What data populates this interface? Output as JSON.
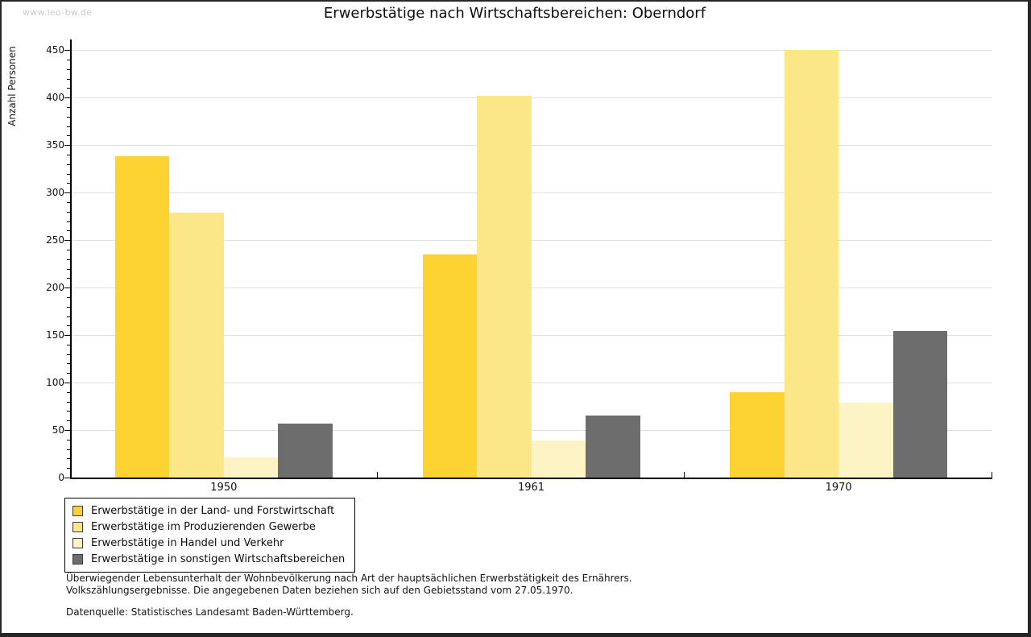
{
  "watermark": "www.leo-bw.de",
  "chart_data": {
    "type": "bar",
    "title": "Erwerbstätige nach Wirtschaftsbereichen: Oberndorf",
    "ylabel": "Anzahl Personen",
    "xlabel": "",
    "categories": [
      "1950",
      "1961",
      "1970"
    ],
    "series": [
      {
        "name": "Erwerbstätige in der Land- und Forstwirtschaft",
        "color": "#FCD330",
        "values": [
          338,
          235,
          90
        ]
      },
      {
        "name": "Erwerbstätige im Produzierenden Gewerbe",
        "color": "#FBE787",
        "values": [
          279,
          402,
          450
        ]
      },
      {
        "name": "Erwerbstätige in Handel und Verkehr",
        "color": "#FCF4C5",
        "values": [
          21,
          39,
          79
        ]
      },
      {
        "name": "Erwerbstätige in sonstigen Wirtschaftsbereichen",
        "color": "#6D6D6D",
        "values": [
          57,
          65,
          154
        ]
      }
    ],
    "ylim": [
      0,
      450
    ],
    "ytick_step": 50,
    "minor_tick_step": 10,
    "grid": true,
    "gridline_color": "#e0e0e0",
    "legend_position": "bottom-left"
  },
  "footnotes": {
    "line1": "Überwiegender Lebensunterhalt der Wohnbevölkerung nach Art der hauptsächlichen Erwerbstätigkeit des Ernährers.",
    "line2": "Volkszählungsergebnisse. Die angegebenen Daten beziehen sich auf den Gebietsstand vom 27.05.1970.",
    "source": "Datenquelle: Statistisches Landesamt Baden-Württemberg."
  }
}
